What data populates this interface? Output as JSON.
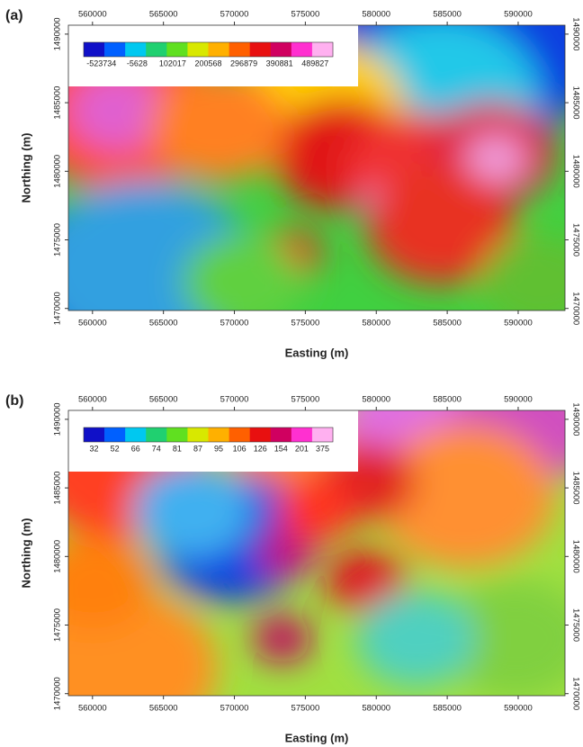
{
  "panels": [
    {
      "label": "(a)",
      "xlabel": "Easting (m)",
      "ylabel": "Northing (m)",
      "xlim": [
        558300,
        593300
      ],
      "ylim": [
        1469850,
        1490650
      ],
      "xticks": [
        560000,
        565000,
        570000,
        575000,
        580000,
        585000,
        590000
      ],
      "yticks": [
        1470000,
        1475000,
        1480000,
        1485000,
        1490000
      ],
      "colorbar": [
        -523734,
        -5628,
        102017,
        200568,
        296879,
        390881,
        489827
      ],
      "colormap": [
        "#1010c8",
        "#0060ff",
        "#00c8f0",
        "#20d070",
        "#60e020",
        "#d8e800",
        "#ffb000",
        "#ff6000",
        "#e81010",
        "#d00060",
        "#ff30d0",
        "#ffb0f0"
      ]
    },
    {
      "label": "(b)",
      "xlabel": "Easting (m)",
      "ylabel": "Northing (m)",
      "xlim": [
        558300,
        593300
      ],
      "ylim": [
        1469850,
        1490650
      ],
      "xticks": [
        560000,
        565000,
        570000,
        575000,
        580000,
        585000,
        590000
      ],
      "yticks": [
        1470000,
        1475000,
        1480000,
        1485000,
        1490000
      ],
      "colorbar": [
        32,
        52,
        66,
        74,
        81,
        87,
        95,
        106,
        126,
        154,
        201,
        375
      ],
      "colormap": [
        "#1010c8",
        "#0060ff",
        "#00c8f0",
        "#20d070",
        "#60e020",
        "#d8e800",
        "#ffb000",
        "#ff6000",
        "#e81010",
        "#d00060",
        "#ff30d0",
        "#ffb0f0"
      ]
    }
  ]
}
